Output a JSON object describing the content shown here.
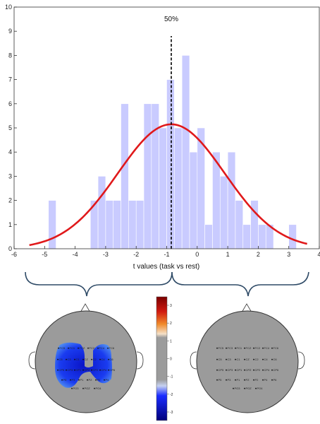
{
  "chart_data": {
    "type": "bar",
    "xlabel": "t values (task vs rest)",
    "ylabel": "",
    "xlim": [
      -6,
      4
    ],
    "ylim": [
      0,
      10
    ],
    "xticks": [
      -6,
      -5,
      -4,
      -3,
      -2,
      -1,
      0,
      1,
      2,
      3,
      4
    ],
    "yticks": [
      0,
      1,
      2,
      3,
      4,
      5,
      6,
      7,
      8,
      9,
      10
    ],
    "bin_width": 0.25,
    "bins": [
      {
        "x": -4.75,
        "count": 2
      },
      {
        "x": -3.375,
        "count": 2
      },
      {
        "x": -3.125,
        "count": 3
      },
      {
        "x": -2.875,
        "count": 2
      },
      {
        "x": -2.625,
        "count": 2
      },
      {
        "x": -2.375,
        "count": 6
      },
      {
        "x": -2.125,
        "count": 2
      },
      {
        "x": -1.875,
        "count": 2
      },
      {
        "x": -1.625,
        "count": 6
      },
      {
        "x": -1.375,
        "count": 6
      },
      {
        "x": -1.125,
        "count": 5
      },
      {
        "x": -0.875,
        "count": 7
      },
      {
        "x": -0.625,
        "count": 5
      },
      {
        "x": -0.375,
        "count": 8
      },
      {
        "x": -0.125,
        "count": 4
      },
      {
        "x": 0.125,
        "count": 5
      },
      {
        "x": 0.375,
        "count": 1
      },
      {
        "x": 0.625,
        "count": 4
      },
      {
        "x": 0.875,
        "count": 3
      },
      {
        "x": 1.125,
        "count": 4
      },
      {
        "x": 1.375,
        "count": 2
      },
      {
        "x": 1.625,
        "count": 1
      },
      {
        "x": 1.875,
        "count": 2
      },
      {
        "x": 2.125,
        "count": 1
      },
      {
        "x": 2.375,
        "count": 1
      },
      {
        "x": 3.125,
        "count": 1
      }
    ],
    "fit": {
      "type": "normal",
      "mean": -0.85,
      "sd": 1.75,
      "peak": 5.15,
      "x_range": [
        -5.5,
        3.6
      ]
    },
    "median_line": {
      "x": -0.85,
      "label": "50%"
    },
    "colors": {
      "bars": "#c9cbff",
      "fit": "#e0191b",
      "median": "#000000"
    }
  },
  "topomaps": {
    "colorbar": {
      "ticks": [
        "3",
        "2",
        "1",
        "0",
        "-1",
        "-2",
        "-3"
      ],
      "colors": [
        "#7a0000",
        "#e52012",
        "#f5e0c8",
        "#9b9b9b",
        "#c6d2f0",
        "#1a2cff",
        "#00007a"
      ]
    },
    "left": {
      "electrodes": [
        "FC5",
        "FC1",
        "FCZ",
        "FC2",
        "FC4",
        "FC6",
        "C5",
        "C3",
        "C1",
        "CZ",
        "C2",
        "C4",
        "C6",
        "CP5",
        "CP3",
        "CP1",
        "CPZ",
        "CP2",
        "CP4",
        "CP6",
        "P5",
        "P3",
        "P1",
        "PZ",
        "P2",
        "P4",
        "PO3",
        "POZ",
        "PO4"
      ]
    },
    "right": {
      "electrodes": [
        "FC5",
        "FC3",
        "FC1",
        "FCZ",
        "FC2",
        "FC4",
        "FC6",
        "C5",
        "C3",
        "C1",
        "CZ",
        "C2",
        "C4",
        "C6",
        "CP5",
        "CP3",
        "CP1",
        "CPZ",
        "CP2",
        "CP4",
        "CP6",
        "P5",
        "P3",
        "P1",
        "PZ",
        "P2",
        "P4",
        "P6",
        "PO3",
        "POZ",
        "PO4"
      ]
    }
  }
}
